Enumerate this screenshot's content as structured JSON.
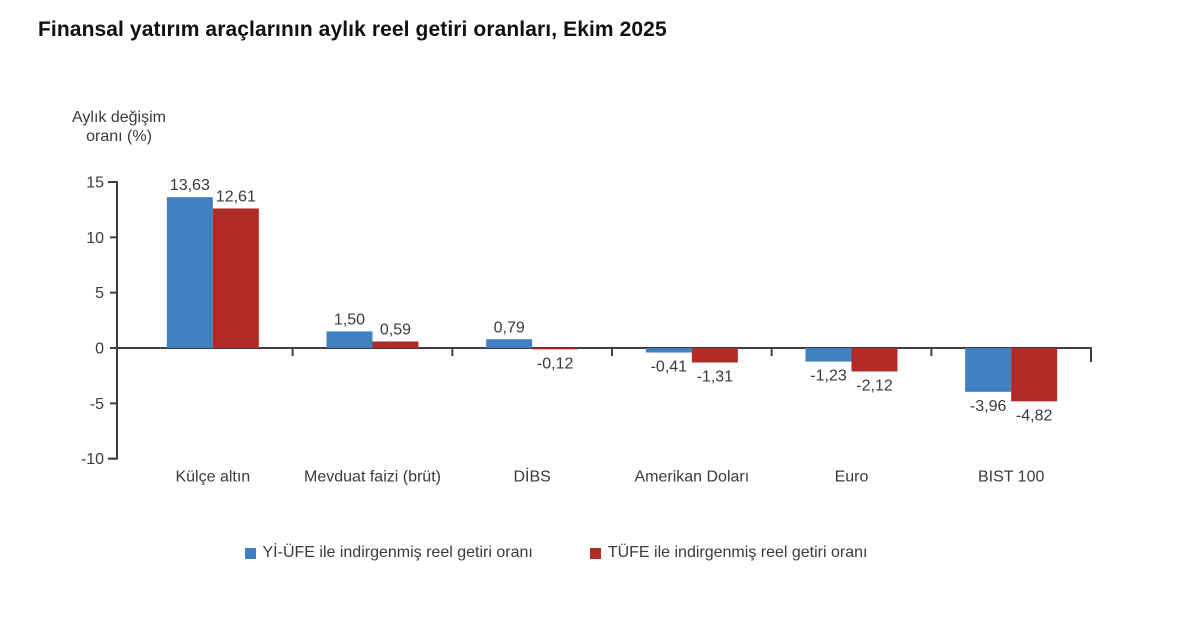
{
  "chart_data": {
    "type": "bar",
    "title": "Finansal yatırım araçlarının aylık reel getiri oranları, Ekim 2025",
    "ylabel_lines": [
      "Aylık değişim",
      "oranı (%)"
    ],
    "categories": [
      "Külçe altın",
      "Mevduat faizi (brüt)",
      "DİBS",
      "Amerikan Doları",
      "Euro",
      "BIST 100"
    ],
    "series": [
      {
        "name": "Yİ-ÜFE ile indirgenmiş reel getiri oranı",
        "color": "#4080C0",
        "values": [
          13.63,
          1.5,
          0.79,
          -0.41,
          -1.23,
          -3.96
        ]
      },
      {
        "name": "TÜFE ile indirgenmiş reel getiri oranı",
        "color": "#B02A26",
        "values": [
          12.61,
          0.59,
          -0.12,
          -1.31,
          -2.12,
          -4.82
        ]
      }
    ],
    "yticks": [
      15,
      10,
      5,
      0,
      -5,
      -10
    ],
    "ylim": [
      -10,
      15
    ],
    "grid": false,
    "legend_position": "bottom",
    "decimal_separator": ",",
    "colors": {
      "axis": "#3F3F3F",
      "text": "#3A3A3A",
      "title": "#101010"
    }
  }
}
